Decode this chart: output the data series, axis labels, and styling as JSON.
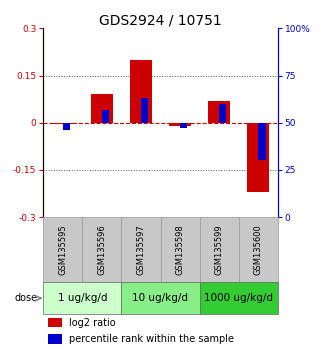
{
  "title": "GDS2924 / 10751",
  "samples": [
    "GSM135595",
    "GSM135596",
    "GSM135597",
    "GSM135598",
    "GSM135599",
    "GSM135600"
  ],
  "log2_ratio": [
    -0.005,
    0.09,
    0.2,
    -0.01,
    0.07,
    -0.22
  ],
  "percentile_rank": [
    46,
    57,
    63,
    47,
    60,
    30
  ],
  "doses": [
    {
      "label": "1 ug/kg/d",
      "color": "#ccffcc"
    },
    {
      "label": "10 ug/kg/d",
      "color": "#88ee88"
    },
    {
      "label": "1000 ug/kg/d",
      "color": "#33cc33"
    }
  ],
  "ylim_left": [
    -0.3,
    0.3
  ],
  "ylim_right": [
    0,
    100
  ],
  "yticks_left": [
    -0.3,
    -0.15,
    0.0,
    0.15,
    0.3
  ],
  "yticks_right": [
    0,
    25,
    50,
    75,
    100
  ],
  "ytick_labels_left": [
    "-0.3",
    "-0.15",
    "0",
    "0.15",
    "0.3"
  ],
  "ytick_labels_right": [
    "0",
    "25",
    "50",
    "75",
    "100%"
  ],
  "bar_color_red": "#cc0000",
  "bar_color_blue": "#0000cc",
  "hline_color": "#cc0000",
  "dotted_line_color": "#555555",
  "red_bar_width": 0.55,
  "blue_bar_width": 0.18,
  "title_fontsize": 10,
  "tick_fontsize": 6.5,
  "sample_label_fontsize": 6,
  "dose_fontsize": 7.5,
  "legend_fontsize": 7
}
